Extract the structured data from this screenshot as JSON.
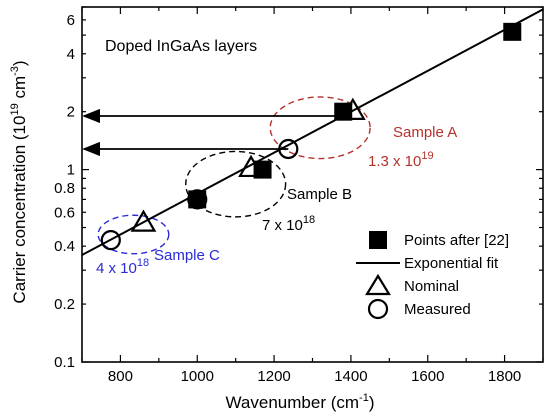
{
  "chart_data": {
    "type": "scatter",
    "title": "Doped InGaAs layers",
    "xlabel": {
      "main": "Wavenumber (cm",
      "sup": "-1",
      "end": ")"
    },
    "ylabel": {
      "main": "Carrier concentration (10",
      "sup1": "19",
      "mid": " cm",
      "sup2": "-3",
      "end": ")"
    },
    "xlim": [
      700,
      1900
    ],
    "ylim": [
      0.1,
      7
    ],
    "yscale": "log",
    "x_ticks": [
      800,
      1000,
      1200,
      1400,
      1600,
      1800
    ],
    "y_ticks": [
      {
        "value": 0.1,
        "label": "0.1"
      },
      {
        "value": 0.2,
        "label": "0.2"
      },
      {
        "value": 0.4,
        "label": "0.4"
      },
      {
        "value": 0.6,
        "label": "0.6"
      },
      {
        "value": 0.8,
        "label": "0.8"
      },
      {
        "value": 1,
        "label": "1"
      },
      {
        "value": 2,
        "label": "2"
      },
      {
        "value": 4,
        "label": "4"
      },
      {
        "value": 6,
        "label": "6"
      }
    ],
    "grid": false,
    "legend_position": "bottom-right",
    "series": [
      {
        "name": "Points after [22]",
        "marker": "filled-square",
        "points": [
          [
            1000,
            0.7
          ],
          [
            1170,
            1.0
          ],
          [
            1380,
            2.0
          ],
          [
            1820,
            5.2
          ]
        ]
      },
      {
        "name": "Exponential fit",
        "marker": "line",
        "points": [
          [
            700,
            0.36
          ],
          [
            1900,
            6.8
          ]
        ]
      },
      {
        "name": "Nominal",
        "marker": "open-triangle",
        "points": [
          [
            860,
            0.53
          ],
          [
            1140,
            1.02
          ],
          [
            1405,
            2.02
          ]
        ]
      },
      {
        "name": "Measured",
        "marker": "open-circle",
        "points": [
          [
            775,
            0.43
          ],
          [
            1000,
            0.7
          ],
          [
            1237,
            1.28
          ]
        ]
      }
    ],
    "arrows": [
      {
        "from": [
          1380,
          1.9
        ],
        "to": [
          700,
          1.9
        ]
      },
      {
        "from": [
          1237,
          1.28
        ],
        "to": [
          700,
          1.28
        ]
      }
    ],
    "samples": [
      {
        "name": "Sample A",
        "value": {
          "base": "1.3 x 10",
          "exp": "19"
        },
        "color": "#b5322b",
        "ellipse": {
          "cx": 1320,
          "cy": 1.65,
          "rx": 130,
          "ry_decades": 0.16
        }
      },
      {
        "name": "Sample B",
        "value": {
          "base": "7 x 10",
          "exp": "18"
        },
        "color": "#000000",
        "ellipse": {
          "cx": 1100,
          "cy": 0.84,
          "rx": 130,
          "ry_decades": 0.17
        }
      },
      {
        "name": "Sample C",
        "value": {
          "base": "4 x 10",
          "exp": "18"
        },
        "color": "#2a2ad6",
        "ellipse": {
          "cx": 834,
          "cy": 0.46,
          "rx": 92,
          "ry_decades": 0.1
        }
      }
    ]
  }
}
